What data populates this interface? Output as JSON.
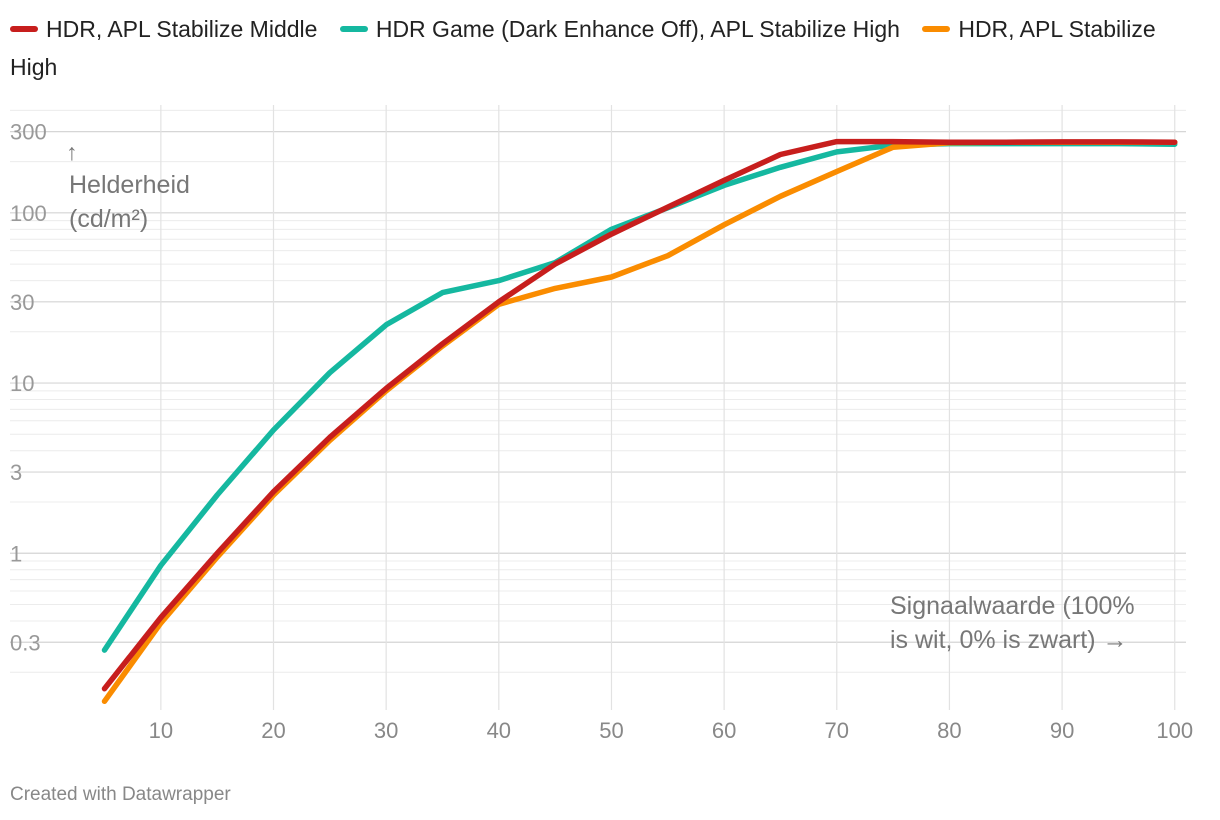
{
  "chart_data": {
    "type": "line",
    "x": [
      5,
      10,
      15,
      20,
      25,
      30,
      35,
      40,
      45,
      50,
      55,
      60,
      65,
      70,
      75,
      80,
      85,
      90,
      95,
      100
    ],
    "series": [
      {
        "name": "HDR, APL Stabilize Middle",
        "color": "#c71e1d",
        "values": [
          0.16,
          0.42,
          1.0,
          2.3,
          4.8,
          9.3,
          17,
          30,
          50,
          75,
          108,
          155,
          220,
          262,
          262,
          260,
          260,
          261,
          261,
          260
        ]
      },
      {
        "name": "HDR Game (Dark Enhance Off), APL Stabilize High",
        "color": "#15b8a0",
        "values": [
          0.27,
          0.85,
          2.2,
          5.3,
          11.5,
          22,
          34,
          40,
          51,
          80,
          107,
          145,
          185,
          228,
          250,
          255,
          255,
          255,
          255,
          253
        ]
      },
      {
        "name": "HDR, APL Stabilize High",
        "color": "#fa8c00",
        "values": [
          0.135,
          0.39,
          0.95,
          2.2,
          4.6,
          9.0,
          16.5,
          29,
          36,
          42,
          56,
          85,
          125,
          175,
          243,
          258,
          260,
          260,
          260,
          260
        ]
      }
    ],
    "y_scale": "log",
    "ylim": [
      0.12,
      430
    ],
    "xlim": [
      3,
      101
    ],
    "x_ticks": [
      10,
      20,
      30,
      40,
      50,
      60,
      70,
      80,
      90,
      100
    ],
    "y_ticks": [
      {
        "value": 0.3,
        "label": "0.3"
      },
      {
        "value": 1,
        "label": "1"
      },
      {
        "value": 3,
        "label": "3"
      },
      {
        "value": 10,
        "label": "10"
      },
      {
        "value": 30,
        "label": "30"
      },
      {
        "value": 100,
        "label": "100"
      },
      {
        "value": 300,
        "label": "300"
      }
    ],
    "ylabel_arrow": "↑",
    "ylabel_lines": [
      "Helderheid",
      "(cd/m²)"
    ],
    "xlabel_lines": [
      "Signaalwaarde (100%",
      "is wit, 0% is zwart) →"
    ],
    "grid": true,
    "legend_position": "top"
  },
  "footer": {
    "credit": "Created with Datawrapper"
  }
}
